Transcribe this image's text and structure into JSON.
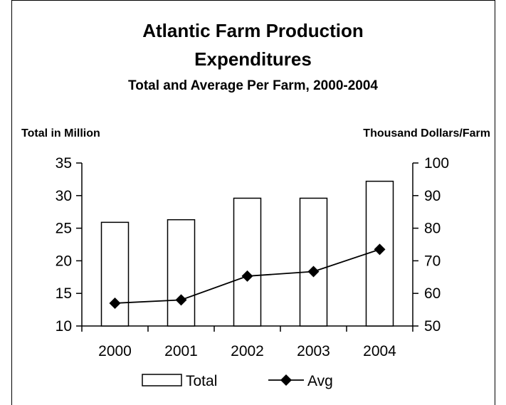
{
  "chart_data": {
    "type": "bar",
    "title_line1": "Atlantic Farm Production",
    "title_line2": "Expenditures",
    "subtitle": "Total and Average Per Farm, 2000-2004",
    "ylabel_left": "Total in Million",
    "ylabel_right": "Thousand Dollars/Farm",
    "categories": [
      "2000",
      "2001",
      "2002",
      "2003",
      "2004"
    ],
    "series": [
      {
        "name": "Total",
        "type": "bar",
        "axis": "left",
        "values": [
          25.9,
          26.3,
          29.6,
          29.6,
          32.2
        ]
      },
      {
        "name": "Avg",
        "type": "line",
        "axis": "right",
        "values": [
          57.0,
          58.0,
          65.3,
          66.7,
          73.5
        ]
      }
    ],
    "ylim_left": [
      10,
      35
    ],
    "yticks_left": [
      10,
      15,
      20,
      25,
      30,
      35
    ],
    "ylim_right": [
      50,
      100
    ],
    "yticks_right": [
      50,
      60,
      70,
      80,
      90,
      100
    ],
    "grid": false,
    "legend_position": "bottom"
  }
}
